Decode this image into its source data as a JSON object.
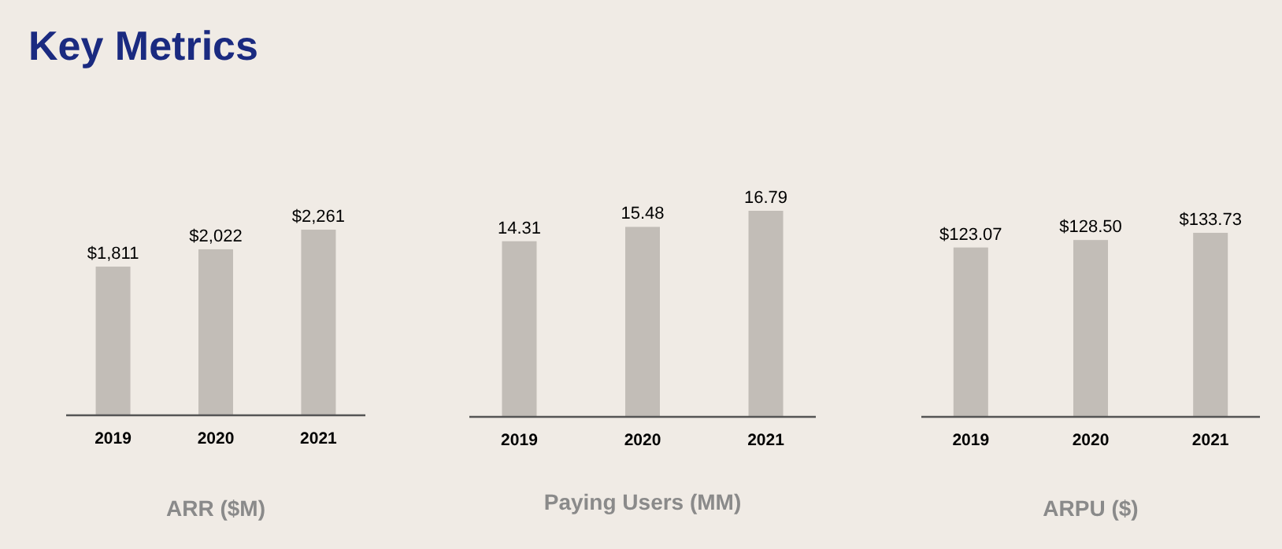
{
  "chart_data": [
    {
      "type": "bar",
      "title": "Key Metrics",
      "xlabel": "ARR ($M)",
      "categories": [
        "2019",
        "2020",
        "2021"
      ],
      "values": [
        1811,
        2022,
        2261
      ],
      "value_labels": [
        "$1,811",
        "$2,022",
        "$2,261"
      ],
      "color": "#c2bdb7"
    },
    {
      "type": "bar",
      "xlabel": "Paying Users (MM)",
      "categories": [
        "2019",
        "2020",
        "2021"
      ],
      "values": [
        14.31,
        15.48,
        16.79
      ],
      "value_labels": [
        "14.31",
        "15.48",
        "16.79"
      ],
      "color": "#c2bdb7"
    },
    {
      "type": "bar",
      "xlabel": "ARPU ($)",
      "categories": [
        "2019",
        "2020",
        "2021"
      ],
      "values": [
        123.07,
        128.5,
        133.73
      ],
      "value_labels": [
        "$123.07",
        "$128.50",
        "$133.73"
      ],
      "color": "#c2bdb7"
    }
  ]
}
